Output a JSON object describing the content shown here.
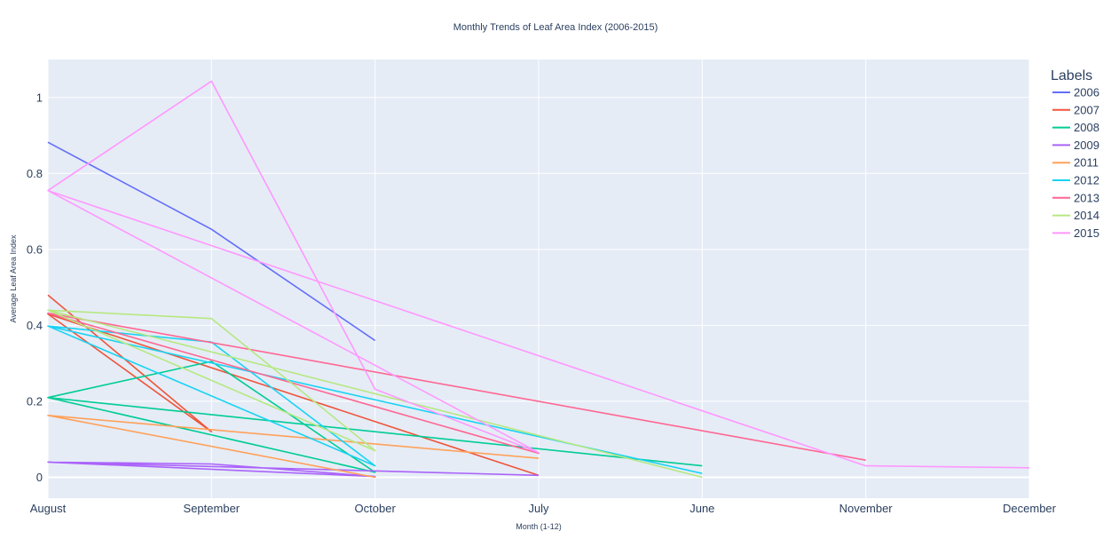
{
  "chart_data": {
    "type": "line",
    "title": "Monthly Trends of Leaf Area Index (2006-2015)",
    "xlabel": "Month (1-12)",
    "ylabel": "Average Leaf Area Index",
    "legend_title": "Labels",
    "legend_position": "top-right",
    "grid": true,
    "categories": [
      "August",
      "September",
      "October",
      "July",
      "June",
      "November",
      "December"
    ],
    "ylim": [
      -0.055,
      1.1
    ],
    "y_ticks": [
      0,
      0.2,
      0.4,
      0.6,
      0.8,
      1
    ],
    "y_tick_labels": [
      "0",
      "0.2",
      "0.4",
      "0.6",
      "0.8",
      "1"
    ],
    "colors": {
      "plot_bg": "#e5ecf6",
      "grid": "#ffffff",
      "text": "#2a3f5f"
    },
    "series": [
      {
        "name": "2006",
        "color": "#636efa",
        "points": [
          [
            "August",
            0.882
          ],
          [
            "September",
            0.653
          ],
          [
            "October",
            0.36
          ]
        ]
      },
      {
        "name": "2007",
        "color": "#EF553B",
        "points": [
          [
            "August",
            0.48
          ],
          [
            "September",
            0.12
          ],
          [
            "August",
            0.43
          ],
          [
            "July",
            0.005
          ]
        ]
      },
      {
        "name": "2008",
        "color": "#00cc96",
        "points": [
          [
            "August",
            0.21
          ],
          [
            "September",
            0.305
          ],
          [
            "October",
            0.013
          ],
          [
            "August",
            0.21
          ],
          [
            "June",
            0.03
          ]
        ]
      },
      {
        "name": "2009",
        "color": "#ab63fa",
        "points": [
          [
            "August",
            0.04
          ],
          [
            "September",
            0.035
          ],
          [
            "October",
            0.002
          ],
          [
            "August",
            0.04
          ],
          [
            "July",
            0.005
          ]
        ]
      },
      {
        "name": "2011",
        "color": "#FFA15A",
        "points": [
          [
            "August",
            0.163
          ],
          [
            "October",
            0.0
          ],
          [
            "August",
            0.163
          ],
          [
            "July",
            0.05
          ]
        ]
      },
      {
        "name": "2012",
        "color": "#19d3f3",
        "points": [
          [
            "August",
            0.398
          ],
          [
            "September",
            0.356
          ],
          [
            "October",
            0.03
          ],
          [
            "August",
            0.398
          ],
          [
            "June",
            0.01
          ]
        ]
      },
      {
        "name": "2013",
        "color": "#FF6692",
        "points": [
          [
            "August",
            0.432
          ],
          [
            "July",
            0.063
          ],
          [
            "August",
            0.432
          ],
          [
            "November",
            0.045
          ]
        ]
      },
      {
        "name": "2014",
        "color": "#B6E880",
        "points": [
          [
            "August",
            0.44
          ],
          [
            "September",
            0.418
          ],
          [
            "October",
            0.07
          ],
          [
            "August",
            0.44
          ],
          [
            "June",
            0.0
          ]
        ]
      },
      {
        "name": "2015",
        "color": "#FF97FF",
        "points": [
          [
            "August",
            0.755
          ],
          [
            "September",
            1.043
          ],
          [
            "October",
            0.232
          ],
          [
            "July",
            0.065
          ],
          [
            "August",
            0.755
          ],
          [
            "November",
            0.03
          ],
          [
            "December",
            0.025
          ]
        ]
      }
    ]
  }
}
